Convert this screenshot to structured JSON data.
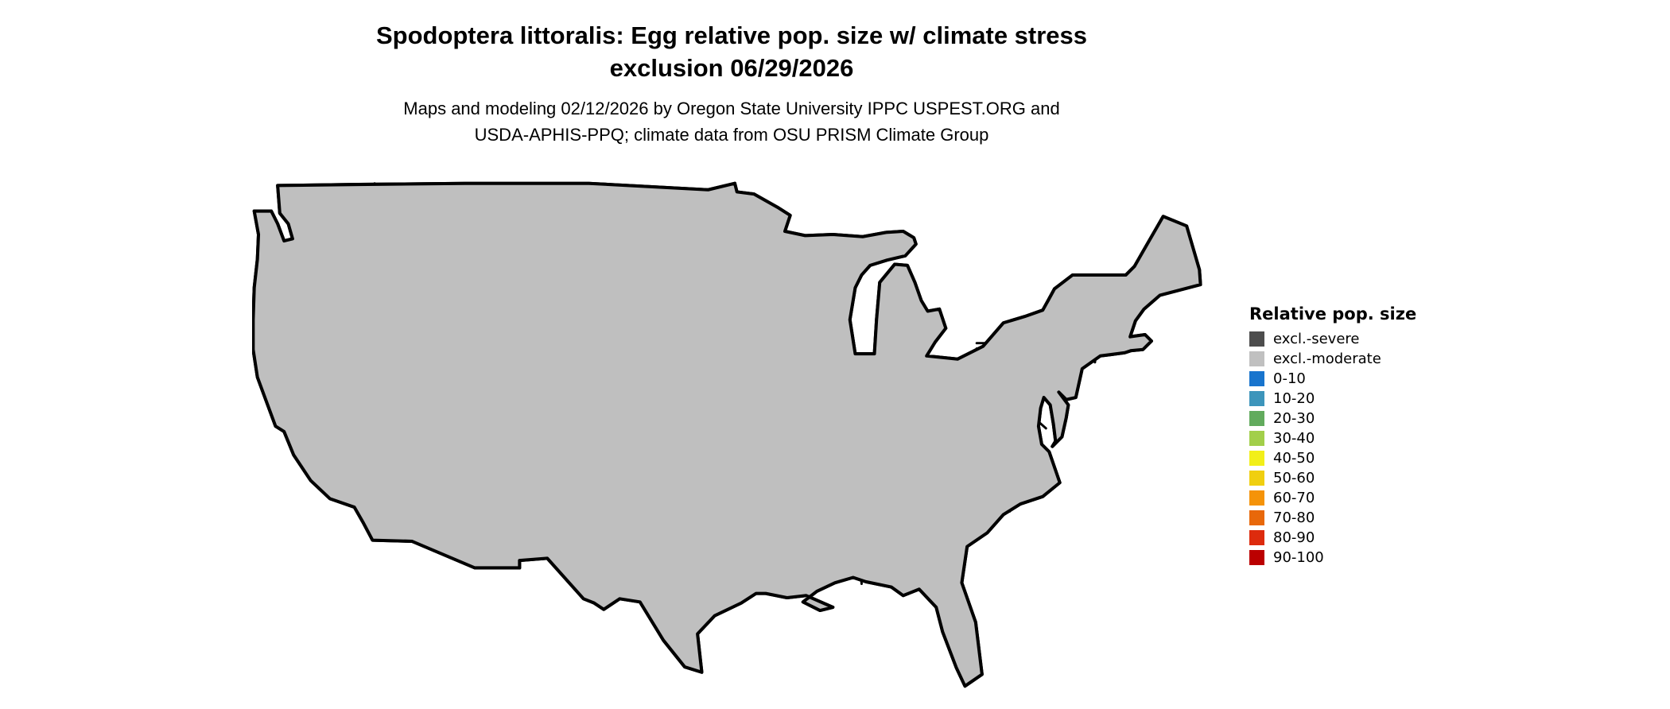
{
  "header": {
    "title_line1": "Spodoptera littoralis: Egg relative pop. size w/ climate stress",
    "title_line2": "exclusion 06/29/2026",
    "subtitle_line1": "Maps and modeling 02/12/2026 by Oregon State University IPPC USPEST.ORG and",
    "subtitle_line2": "USDA-APHIS-PPQ; climate data from OSU PRISM Climate Group"
  },
  "legend": {
    "title": "Relative pop. size",
    "items": [
      {
        "label": "excl.-severe",
        "color": "#4d4d4d"
      },
      {
        "label": "excl.-moderate",
        "color": "#c0c0c0"
      },
      {
        "label": "0-10",
        "color": "#1874cd"
      },
      {
        "label": "10-20",
        "color": "#3d95bb"
      },
      {
        "label": "20-30",
        "color": "#62ab5d"
      },
      {
        "label": "30-40",
        "color": "#a2cf4a"
      },
      {
        "label": "40-50",
        "color": "#f2ef19"
      },
      {
        "label": "50-60",
        "color": "#f0cf10"
      },
      {
        "label": "60-70",
        "color": "#f59309"
      },
      {
        "label": "70-80",
        "color": "#e8680a"
      },
      {
        "label": "80-90",
        "color": "#dd2b0d"
      },
      {
        "label": "90-100",
        "color": "#bb0000"
      }
    ]
  },
  "map": {
    "base_fill": "#bfbfbf",
    "severe_fill": "#4d4d4d",
    "blue_fill": "#1874cd",
    "green_fill": "#6fb055",
    "lime_fill": "#a8d24a",
    "teal_fill": "#3d95bb"
  }
}
